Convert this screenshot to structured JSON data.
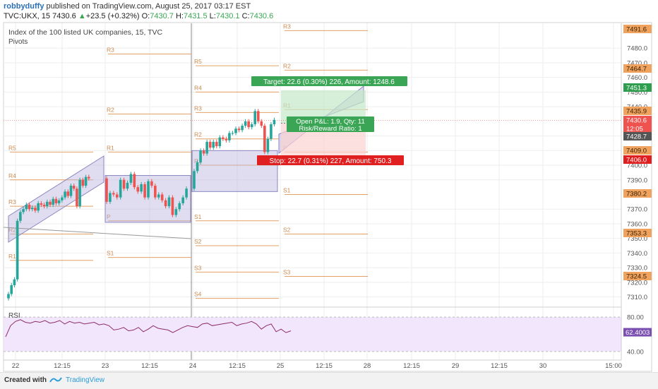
{
  "header": {
    "user": "robbyduffy",
    "published": "published on TradingView.com, August 25, 2017 03:17 EST",
    "symbol": "TVC:UKX, 15",
    "last": "7430.6",
    "change": "+23.5 (+0.32%)",
    "o_label": "O:",
    "o_val": "7430.7",
    "h_label": "H:",
    "h_val": "7431.5",
    "l_label": "L:",
    "l_val": "7430.1",
    "c_label": "C:",
    "c_val": "7430.6"
  },
  "footer": {
    "created": "Created with",
    "brand": "TradingView"
  },
  "colors": {
    "bull": "#26a69a",
    "bear": "#ef5350",
    "pivot": "#e3a066",
    "channel": "#b7b3db",
    "target": "#3aa655",
    "stop": "#e02020",
    "rsi_line": "#8e2c6a",
    "rsi_fill": "#f1e6fb"
  },
  "chart_data": [
    {
      "type": "candlestick",
      "title": "Index of the 100 listed UK companies, 15, TVC",
      "indicator": "Pivots",
      "y_ticks": [
        7480.0,
        7470.0,
        7460.0,
        7450.0,
        7440.0,
        7420.0,
        7410.0,
        7400.0,
        7390.0,
        7370.0,
        7360.0,
        7350.0,
        7340.0,
        7330.0,
        7320.0,
        7310.0
      ],
      "ylim": [
        7304,
        7497
      ],
      "x_ticks": [
        "22",
        "12:15",
        "23",
        "12:15",
        "24",
        "12:15",
        "25",
        "12:15",
        "28",
        "12:15",
        "29",
        "12:15",
        "30",
        "15:00"
      ],
      "price_tags": [
        {
          "value": "7491.6",
          "kind": "pivot"
        },
        {
          "value": "7464.7",
          "kind": "pivot"
        },
        {
          "value": "7451.3",
          "kind": "target"
        },
        {
          "value": "7435.9",
          "kind": "pivot"
        },
        {
          "value": "7430.6",
          "kind": "last"
        },
        {
          "value": "12:05",
          "kind": "time"
        },
        {
          "value": "7428.7",
          "kind": "entry"
        },
        {
          "value": "7409.0",
          "kind": "pivot"
        },
        {
          "value": "7406.0",
          "kind": "stop"
        },
        {
          "value": "7380.2",
          "kind": "pivot"
        },
        {
          "value": "7353.3",
          "kind": "pivot"
        },
        {
          "value": "7324.5",
          "kind": "pivot"
        }
      ],
      "pivot_levels": [
        {
          "day": "22",
          "levels": [
            {
              "label": "R5",
              "value": 7409
            },
            {
              "label": "R4",
              "value": 7390
            },
            {
              "label": "R3",
              "value": 7372
            },
            {
              "label": "R2",
              "value": 7353
            },
            {
              "label": "R1",
              "value": 7335
            }
          ]
        },
        {
          "day": "23",
          "levels": [
            {
              "label": "R3",
              "value": 7476
            },
            {
              "label": "R2",
              "value": 7435
            },
            {
              "label": "R1",
              "value": 7409
            },
            {
              "label": "P",
              "value": 7362
            },
            {
              "label": "S1",
              "value": 7337
            }
          ]
        },
        {
          "day": "24",
          "levels": [
            {
              "label": "R5",
              "value": 7468
            },
            {
              "label": "R4",
              "value": 7450
            },
            {
              "label": "R3",
              "value": 7436
            },
            {
              "label": "R2",
              "value": 7418
            },
            {
              "label": "R1",
              "value": 7400
            },
            {
              "label": "S1",
              "value": 7362
            },
            {
              "label": "S2",
              "value": 7345
            },
            {
              "label": "S3",
              "value": 7327
            },
            {
              "label": "S4",
              "value": 7309
            }
          ]
        },
        {
          "day": "25",
          "levels": [
            {
              "label": "R3",
              "value": 7492
            },
            {
              "label": "R2",
              "value": 7465
            },
            {
              "label": "R1",
              "value": 7438
            },
            {
              "label": "P",
              "value": 7409
            },
            {
              "label": "S1",
              "value": 7380
            },
            {
              "label": "S2",
              "value": 7353
            },
            {
              "label": "S3",
              "value": 7324
            }
          ]
        }
      ],
      "position": {
        "entry": 7428.7,
        "target": 7451.3,
        "stop": 7406.0,
        "target_label": "Target: 22.6 (0.30%) 226, Amount: 1248.6",
        "stop_label": "Stop: 22.7 (0.31%) 227, Amount: 750.3",
        "pnl_label": "Open P&L: 1.9, Qty: 11",
        "rr_label": "Risk/Reward Ratio: 1"
      },
      "series": [
        {
          "day": "22",
          "close": [
            7312,
            7318,
            7322,
            7362,
            7368,
            7370,
            7373,
            7370,
            7371,
            7369,
            7374,
            7373,
            7372,
            7375,
            7373,
            7377,
            7374,
            7376,
            7378,
            7382,
            7379,
            7386,
            7384,
            7372,
            7390,
            7386,
            7392,
            7391
          ]
        },
        {
          "day": "23",
          "close": [
            7375,
            7381,
            7380,
            7378,
            7390,
            7384,
            7388,
            7394,
            7385,
            7382,
            7387,
            7378,
            7389,
            7386,
            7378,
            7380,
            7376,
            7372,
            7378,
            7366,
            7370,
            7374,
            7378,
            7384
          ]
        },
        {
          "day": "24",
          "close": [
            7396,
            7402,
            7410,
            7408,
            7416,
            7412,
            7416,
            7413,
            7419,
            7418,
            7417,
            7422,
            7422,
            7425,
            7424,
            7427,
            7430,
            7426,
            7428,
            7437,
            7430,
            7427,
            7409,
            7418,
            7428,
            7431
          ]
        }
      ]
    },
    {
      "type": "line",
      "title": "RSI",
      "y_ticks": [
        80.0,
        40.0
      ],
      "last_value": "62.4003",
      "ylim": [
        30,
        90
      ],
      "series": [
        {
          "values": [
            57,
            70,
            75,
            77,
            74,
            73,
            75,
            74,
            76,
            73,
            74,
            76,
            72,
            75,
            73,
            74,
            72,
            73,
            74,
            71,
            72,
            70,
            65,
            66,
            68,
            64,
            65,
            68,
            63,
            66,
            70,
            67,
            66,
            65,
            62,
            65,
            68,
            70,
            69,
            68,
            72,
            73,
            70,
            71,
            72,
            73,
            74,
            70,
            72,
            73,
            75,
            72,
            66,
            70,
            72,
            63,
            66,
            62,
            64
          ]
        }
      ]
    }
  ]
}
